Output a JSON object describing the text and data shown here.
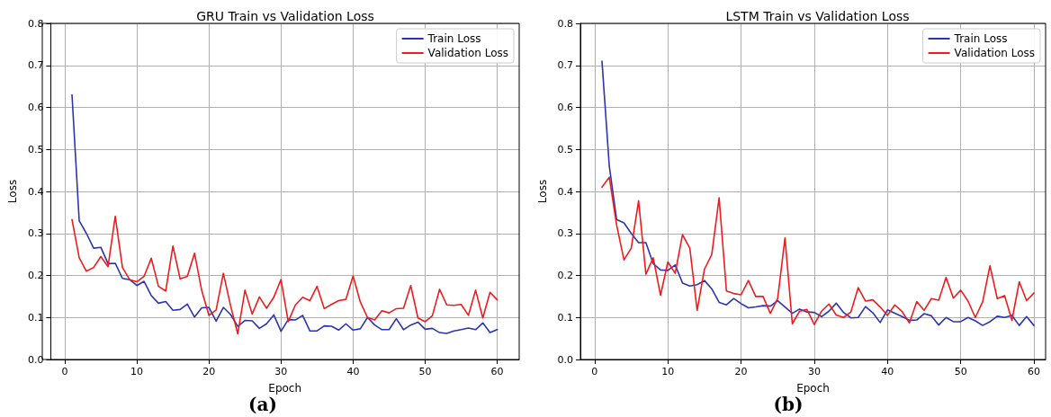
{
  "chart_data": [
    {
      "type": "line",
      "title": "GRU Train vs Validation Loss",
      "xlabel": "Epoch",
      "ylabel": "Loss",
      "annotations": [
        "(a)"
      ],
      "x": [
        1,
        2,
        3,
        4,
        5,
        6,
        7,
        8,
        9,
        10,
        11,
        12,
        13,
        14,
        15,
        16,
        17,
        18,
        19,
        20,
        21,
        22,
        23,
        24,
        25,
        26,
        27,
        28,
        29,
        30,
        31,
        32,
        33,
        34,
        35,
        36,
        37,
        38,
        39,
        40,
        41,
        42,
        43,
        44,
        45,
        46,
        47,
        48,
        49,
        50,
        51,
        52,
        53,
        54,
        55,
        56,
        57,
        58,
        59,
        60
      ],
      "series": [
        {
          "name": "Train Loss",
          "color": "#2b35af",
          "values": [
            0.63,
            0.33,
            0.3,
            0.265,
            0.267,
            0.228,
            0.229,
            0.193,
            0.19,
            0.176,
            0.186,
            0.152,
            0.134,
            0.138,
            0.117,
            0.119,
            0.132,
            0.101,
            0.123,
            0.124,
            0.091,
            0.124,
            0.107,
            0.079,
            0.093,
            0.092,
            0.074,
            0.085,
            0.106,
            0.067,
            0.095,
            0.094,
            0.105,
            0.068,
            0.068,
            0.08,
            0.079,
            0.07,
            0.085,
            0.07,
            0.073,
            0.1,
            0.082,
            0.071,
            0.071,
            0.097,
            0.071,
            0.082,
            0.089,
            0.072,
            0.074,
            0.064,
            0.062,
            0.068,
            0.071,
            0.075,
            0.071,
            0.087,
            0.064,
            0.071
          ]
        },
        {
          "name": "Validation Loss",
          "color": "#ee1c1c",
          "values": [
            0.333,
            0.242,
            0.21,
            0.219,
            0.245,
            0.221,
            0.341,
            0.219,
            0.19,
            0.185,
            0.198,
            0.241,
            0.174,
            0.163,
            0.27,
            0.192,
            0.198,
            0.253,
            0.164,
            0.105,
            0.118,
            0.205,
            0.128,
            0.061,
            0.165,
            0.108,
            0.149,
            0.122,
            0.148,
            0.19,
            0.09,
            0.13,
            0.148,
            0.14,
            0.174,
            0.121,
            0.131,
            0.14,
            0.143,
            0.199,
            0.137,
            0.1,
            0.094,
            0.116,
            0.111,
            0.121,
            0.122,
            0.176,
            0.099,
            0.09,
            0.104,
            0.167,
            0.13,
            0.129,
            0.131,
            0.105,
            0.165,
            0.099,
            0.16,
            0.142
          ]
        }
      ],
      "xlim": [
        -1.95,
        63.05
      ],
      "xticks": [
        0,
        10,
        20,
        30,
        40,
        50,
        60
      ],
      "ylim": [
        0,
        0.8
      ],
      "yticks": [
        {
          "value": 0,
          "label": "0.0"
        },
        0.1,
        0.2,
        0.3,
        0.4,
        0.5,
        0.6,
        0.7,
        0.8
      ],
      "grid": true,
      "legend": "top right",
      "marker": "none",
      "line_style": "solid"
    },
    {
      "type": "line",
      "title": "LSTM Train vs Validation Loss",
      "xlabel": "Epoch",
      "ylabel": "Loss",
      "annotations": [
        "(b)"
      ],
      "x": [
        1,
        2,
        3,
        4,
        5,
        6,
        7,
        8,
        9,
        10,
        11,
        12,
        13,
        14,
        15,
        16,
        17,
        18,
        19,
        20,
        21,
        22,
        23,
        24,
        25,
        26,
        27,
        28,
        29,
        30,
        31,
        32,
        33,
        34,
        35,
        36,
        37,
        38,
        39,
        40,
        41,
        42,
        43,
        44,
        45,
        46,
        47,
        48,
        49,
        50,
        51,
        52,
        53,
        54,
        55,
        56,
        57,
        58,
        59,
        60
      ],
      "series": [
        {
          "name": "Train Loss",
          "color": "#2b35af",
          "values": [
            0.71,
            0.46,
            0.333,
            0.325,
            0.3,
            0.278,
            0.278,
            0.228,
            0.213,
            0.212,
            0.225,
            0.182,
            0.175,
            0.178,
            0.188,
            0.168,
            0.136,
            0.13,
            0.145,
            0.133,
            0.123,
            0.125,
            0.128,
            0.127,
            0.14,
            0.125,
            0.11,
            0.12,
            0.113,
            0.112,
            0.102,
            0.115,
            0.134,
            0.112,
            0.099,
            0.1,
            0.126,
            0.111,
            0.088,
            0.118,
            0.11,
            0.102,
            0.093,
            0.094,
            0.109,
            0.104,
            0.082,
            0.1,
            0.09,
            0.09,
            0.1,
            0.092,
            0.081,
            0.09,
            0.103,
            0.1,
            0.105,
            0.081,
            0.102,
            0.081
          ]
        },
        {
          "name": "Validation Loss",
          "color": "#ee1c1c",
          "values": [
            0.41,
            0.434,
            0.32,
            0.237,
            0.265,
            0.378,
            0.203,
            0.242,
            0.153,
            0.232,
            0.205,
            0.297,
            0.265,
            0.117,
            0.215,
            0.25,
            0.385,
            0.163,
            0.157,
            0.154,
            0.188,
            0.15,
            0.15,
            0.11,
            0.145,
            0.289,
            0.085,
            0.115,
            0.119,
            0.083,
            0.115,
            0.132,
            0.106,
            0.1,
            0.113,
            0.171,
            0.139,
            0.142,
            0.125,
            0.105,
            0.13,
            0.114,
            0.087,
            0.138,
            0.117,
            0.145,
            0.141,
            0.195,
            0.146,
            0.165,
            0.139,
            0.1,
            0.137,
            0.223,
            0.145,
            0.152,
            0.093,
            0.185,
            0.14,
            0.158
          ]
        }
      ],
      "xlim": [
        -1.95,
        61.6
      ],
      "xticks": [
        0,
        10,
        20,
        30,
        40,
        50,
        60
      ],
      "ylim": [
        0,
        0.8
      ],
      "yticks": [
        {
          "value": 0,
          "label": "0.0"
        },
        0.1,
        0.2,
        0.3,
        0.4,
        0.5,
        0.6,
        0.7,
        0.8
      ],
      "grid": true,
      "legend": "top right",
      "marker": "none",
      "line_style": "solid"
    }
  ]
}
